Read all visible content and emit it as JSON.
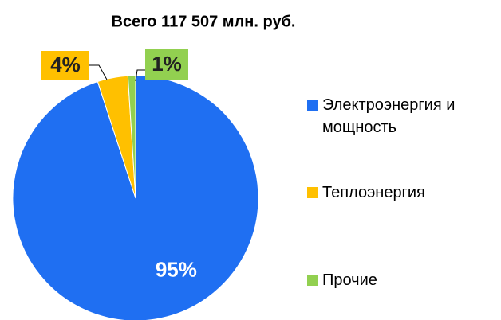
{
  "chart_data": {
    "type": "pie",
    "title": "Всего 117 507 млн. руб.",
    "categories": [
      "Электроэнергия и мощность",
      "Теплоэнергия",
      "Прочие"
    ],
    "values": [
      95,
      4,
      1
    ],
    "value_labels": [
      "95%",
      "4%",
      "1%"
    ],
    "colors": [
      "#1f6ff2",
      "#ffc000",
      "#92d050"
    ],
    "legend": "right"
  }
}
